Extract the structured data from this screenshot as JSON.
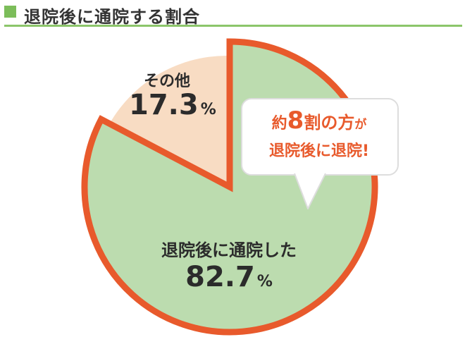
{
  "header": {
    "title": "退院後に通院する割合",
    "accent_color": "#7cbd5a"
  },
  "chart_data": {
    "type": "pie",
    "categories": [
      "退院後に通院した",
      "その他"
    ],
    "values": [
      82.7,
      17.3
    ],
    "labels": [
      "82.7%",
      "17.3%"
    ],
    "colors": [
      "#bcdcaf",
      "#f8dcc3"
    ],
    "highlight_color": "#e85a2c",
    "highlighted": "退院後に通院した"
  },
  "slices": {
    "main": {
      "label": "退院後に通院した",
      "value_number": "82.7",
      "unit": "%"
    },
    "other": {
      "label": "その他",
      "value_number": "17.3",
      "unit": "%"
    }
  },
  "callout": {
    "prefix": "約",
    "number": "8",
    "suffix_main": "割の方",
    "suffix_small": "が",
    "line2": "退院後に退院!"
  }
}
